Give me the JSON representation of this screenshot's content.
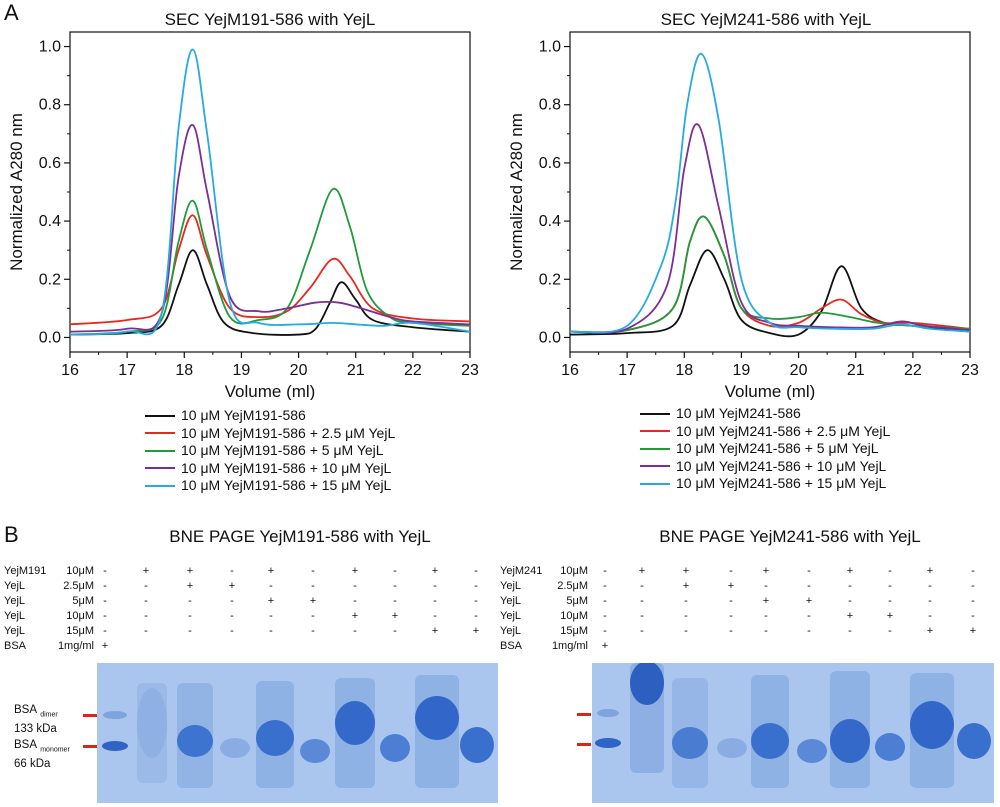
{
  "panel_a": {
    "letter": "A"
  },
  "panel_b": {
    "letter": "B"
  },
  "chart_data": [
    {
      "type": "line",
      "title": "SEC YejM191-586 with YejL",
      "xlabel": "Volume (ml)",
      "ylabel": "Normalized A280 nm",
      "xlim": [
        16,
        23
      ],
      "ylim": [
        -0.05,
        1.05
      ],
      "xticks": [
        "16",
        "17",
        "18",
        "19",
        "20",
        "21",
        "22",
        "23"
      ],
      "yticks": [
        "0.0",
        "0.2",
        "0.4",
        "0.6",
        "0.8",
        "1.0"
      ],
      "grid": false,
      "legend_position": "below",
      "series": [
        {
          "name": "10 μM YejM191-586",
          "color": "#111111",
          "points": [
            [
              16,
              0.01
            ],
            [
              17,
              0.015
            ],
            [
              17.6,
              0.04
            ],
            [
              17.9,
              0.18
            ],
            [
              18.15,
              0.3
            ],
            [
              18.4,
              0.18
            ],
            [
              18.7,
              0.05
            ],
            [
              19.2,
              0.015
            ],
            [
              20,
              0.01
            ],
            [
              20.3,
              0.03
            ],
            [
              20.55,
              0.12
            ],
            [
              20.75,
              0.19
            ],
            [
              21,
              0.13
            ],
            [
              21.3,
              0.06
            ],
            [
              22,
              0.035
            ],
            [
              23,
              0.02
            ]
          ]
        },
        {
          "name": "10 μM YejM191-586 + 2.5 μM YejL",
          "color": "#e8281e",
          "points": [
            [
              16,
              0.045
            ],
            [
              17,
              0.06
            ],
            [
              17.6,
              0.1
            ],
            [
              17.9,
              0.3
            ],
            [
              18.15,
              0.42
            ],
            [
              18.4,
              0.28
            ],
            [
              18.8,
              0.1
            ],
            [
              19.3,
              0.07
            ],
            [
              19.8,
              0.09
            ],
            [
              20.2,
              0.17
            ],
            [
              20.6,
              0.27
            ],
            [
              20.9,
              0.21
            ],
            [
              21.3,
              0.1
            ],
            [
              22,
              0.065
            ],
            [
              23,
              0.055
            ]
          ]
        },
        {
          "name": "10 μM YejM191-586 + 5 μM YejL",
          "color": "#1f9b3a",
          "points": [
            [
              16,
              0.01
            ],
            [
              17,
              0.02
            ],
            [
              17.6,
              0.06
            ],
            [
              17.9,
              0.33
            ],
            [
              18.15,
              0.47
            ],
            [
              18.4,
              0.3
            ],
            [
              18.8,
              0.07
            ],
            [
              19.3,
              0.06
            ],
            [
              19.8,
              0.1
            ],
            [
              20.2,
              0.3
            ],
            [
              20.6,
              0.51
            ],
            [
              20.9,
              0.38
            ],
            [
              21.2,
              0.16
            ],
            [
              21.6,
              0.07
            ],
            [
              22,
              0.05
            ],
            [
              23,
              0.04
            ]
          ]
        },
        {
          "name": "10 μM YejM191-586 + 10 μM YejL",
          "color": "#7b2f92",
          "points": [
            [
              16,
              0.02
            ],
            [
              17,
              0.03
            ],
            [
              17.6,
              0.08
            ],
            [
              17.9,
              0.55
            ],
            [
              18.15,
              0.73
            ],
            [
              18.4,
              0.5
            ],
            [
              18.8,
              0.14
            ],
            [
              19.3,
              0.09
            ],
            [
              19.8,
              0.1
            ],
            [
              20.3,
              0.12
            ],
            [
              20.7,
              0.12
            ],
            [
              21.1,
              0.1
            ],
            [
              21.6,
              0.07
            ],
            [
              22,
              0.055
            ],
            [
              23,
              0.045
            ]
          ]
        },
        {
          "name": "10 μM YejM191-586 + 15 μM YejL",
          "color": "#27aae1",
          "points": [
            [
              16,
              0.01
            ],
            [
              17,
              0.02
            ],
            [
              17.6,
              0.08
            ],
            [
              17.9,
              0.72
            ],
            [
              18.15,
              0.99
            ],
            [
              18.4,
              0.7
            ],
            [
              18.8,
              0.12
            ],
            [
              19.3,
              0.05
            ],
            [
              20,
              0.045
            ],
            [
              20.6,
              0.05
            ],
            [
              21,
              0.045
            ],
            [
              21.5,
              0.04
            ],
            [
              22,
              0.05
            ],
            [
              23,
              0.02
            ]
          ]
        }
      ]
    },
    {
      "type": "line",
      "title": "SEC YejM241-586 with YejL",
      "xlabel": "Volume (ml)",
      "ylabel": "Normalized A280 nm",
      "xlim": [
        16,
        23
      ],
      "ylim": [
        -0.05,
        1.05
      ],
      "xticks": [
        "16",
        "17",
        "18",
        "19",
        "20",
        "21",
        "22",
        "23"
      ],
      "yticks": [
        "0.0",
        "0.2",
        "0.4",
        "0.6",
        "0.8",
        "1.0"
      ],
      "grid": false,
      "legend_position": "below",
      "series": [
        {
          "name": "10 μM YejM241-586",
          "color": "#111111",
          "points": [
            [
              16,
              0.01
            ],
            [
              17,
              0.015
            ],
            [
              17.8,
              0.04
            ],
            [
              18.1,
              0.18
            ],
            [
              18.4,
              0.3
            ],
            [
              18.7,
              0.2
            ],
            [
              19,
              0.06
            ],
            [
              19.5,
              0.015
            ],
            [
              20,
              0.01
            ],
            [
              20.4,
              0.09
            ],
            [
              20.75,
              0.245
            ],
            [
              21.1,
              0.1
            ],
            [
              21.5,
              0.05
            ],
            [
              22,
              0.04
            ],
            [
              23,
              0.02
            ]
          ]
        },
        {
          "name": "10 μM YejM241-586 + 2.5 μM YejL",
          "color": "#e8281e",
          "points": [
            [
              16,
              0.02
            ],
            [
              17,
              0.025
            ],
            [
              17.8,
              0.1
            ],
            [
              18.1,
              0.33
            ],
            [
              18.35,
              0.415
            ],
            [
              18.7,
              0.28
            ],
            [
              19,
              0.1
            ],
            [
              19.5,
              0.04
            ],
            [
              20,
              0.05
            ],
            [
              20.4,
              0.1
            ],
            [
              20.75,
              0.13
            ],
            [
              21.1,
              0.08
            ],
            [
              21.5,
              0.05
            ],
            [
              22,
              0.05
            ],
            [
              23,
              0.03
            ]
          ]
        },
        {
          "name": "10 μM YejM241-586 + 5 μM YejL",
          "color": "#1f9b3a",
          "points": [
            [
              16,
              0.02
            ],
            [
              17,
              0.025
            ],
            [
              17.8,
              0.1
            ],
            [
              18.1,
              0.33
            ],
            [
              18.35,
              0.415
            ],
            [
              18.7,
              0.28
            ],
            [
              19,
              0.1
            ],
            [
              19.5,
              0.065
            ],
            [
              20,
              0.07
            ],
            [
              20.4,
              0.085
            ],
            [
              20.9,
              0.07
            ],
            [
              21.4,
              0.05
            ],
            [
              22,
              0.04
            ],
            [
              23,
              0.03
            ]
          ]
        },
        {
          "name": "10 μM YejM241-586 + 10 μM YejL",
          "color": "#7b2f92",
          "points": [
            [
              16,
              0.02
            ],
            [
              17,
              0.03
            ],
            [
              17.7,
              0.18
            ],
            [
              18,
              0.58
            ],
            [
              18.25,
              0.73
            ],
            [
              18.6,
              0.45
            ],
            [
              19,
              0.12
            ],
            [
              19.5,
              0.05
            ],
            [
              20,
              0.04
            ],
            [
              20.6,
              0.035
            ],
            [
              21.3,
              0.035
            ],
            [
              21.8,
              0.055
            ],
            [
              22.2,
              0.04
            ],
            [
              23,
              0.025
            ]
          ]
        },
        {
          "name": "10 μM YejM241-586 + 15 μM YejL",
          "color": "#27aae1",
          "points": [
            [
              16,
              0.02
            ],
            [
              17,
              0.04
            ],
            [
              17.6,
              0.25
            ],
            [
              17.85,
              0.47
            ],
            [
              18.05,
              0.8
            ],
            [
              18.3,
              0.975
            ],
            [
              18.6,
              0.75
            ],
            [
              19,
              0.2
            ],
            [
              19.5,
              0.05
            ],
            [
              20,
              0.035
            ],
            [
              20.6,
              0.03
            ],
            [
              21.3,
              0.03
            ],
            [
              21.8,
              0.045
            ],
            [
              22.3,
              0.03
            ],
            [
              23,
              0.02
            ]
          ]
        }
      ]
    }
  ],
  "gel_left": {
    "title": "BNE PAGE YejM191-586 with YejL",
    "row_labels": [
      {
        "name": "YejM191",
        "conc": "10μM"
      },
      {
        "name": "YejL",
        "conc": "2.5μM"
      },
      {
        "name": "YejL",
        "conc": "5μM"
      },
      {
        "name": "YejL",
        "conc": "10μM"
      },
      {
        "name": "YejL",
        "conc": "15μM"
      },
      {
        "name": "BSA",
        "conc": "1mg/ml"
      }
    ],
    "matrix": [
      [
        "-",
        "+",
        "+",
        "-",
        "+",
        "-",
        "+",
        "-",
        "+",
        "-"
      ],
      [
        "-",
        "-",
        "+",
        "+",
        "-",
        "-",
        "-",
        "-",
        "-",
        "-"
      ],
      [
        "-",
        "-",
        "-",
        "-",
        "+",
        "+",
        "-",
        "-",
        "-",
        "-"
      ],
      [
        "-",
        "-",
        "-",
        "-",
        "-",
        "-",
        "+",
        "+",
        "-",
        "-"
      ],
      [
        "-",
        "-",
        "-",
        "-",
        "-",
        "-",
        "-",
        "-",
        "+",
        "+"
      ],
      [
        "+",
        "",
        "",
        "",
        "",
        "",
        "",
        "",
        "",
        ""
      ]
    ],
    "marker_labels": {
      "dimer_name": "BSA",
      "dimer_sub": "dimer",
      "dimer_mw": "133 kDa",
      "monomer_name": "BSA",
      "monomer_sub": "monomer",
      "monomer_mw": "66 kDa"
    },
    "marker_color": "#e0231a"
  },
  "gel_right": {
    "title": "BNE PAGE YejM241-586 with YejL",
    "row_labels": [
      {
        "name": "YejM241",
        "conc": "10μM"
      },
      {
        "name": "YejL",
        "conc": "2.5μM"
      },
      {
        "name": "YejL",
        "conc": "5μM"
      },
      {
        "name": "YejL",
        "conc": "10μM"
      },
      {
        "name": "YejL",
        "conc": "15μM"
      },
      {
        "name": "BSA",
        "conc": "1mg/ml"
      }
    ],
    "matrix": [
      [
        "-",
        "+",
        "+",
        "-",
        "+",
        "-",
        "+",
        "-",
        "+",
        "-"
      ],
      [
        "-",
        "-",
        "+",
        "+",
        "-",
        "-",
        "-",
        "-",
        "-",
        "-"
      ],
      [
        "-",
        "-",
        "-",
        "-",
        "+",
        "+",
        "-",
        "-",
        "-",
        "-"
      ],
      [
        "-",
        "-",
        "-",
        "-",
        "-",
        "-",
        "+",
        "+",
        "-",
        "-"
      ],
      [
        "-",
        "-",
        "-",
        "-",
        "-",
        "-",
        "-",
        "-",
        "+",
        "+"
      ],
      [
        "+",
        "",
        "",
        "",
        "",
        "",
        "",
        "",
        "",
        ""
      ]
    ],
    "marker_color": "#e0231a"
  }
}
